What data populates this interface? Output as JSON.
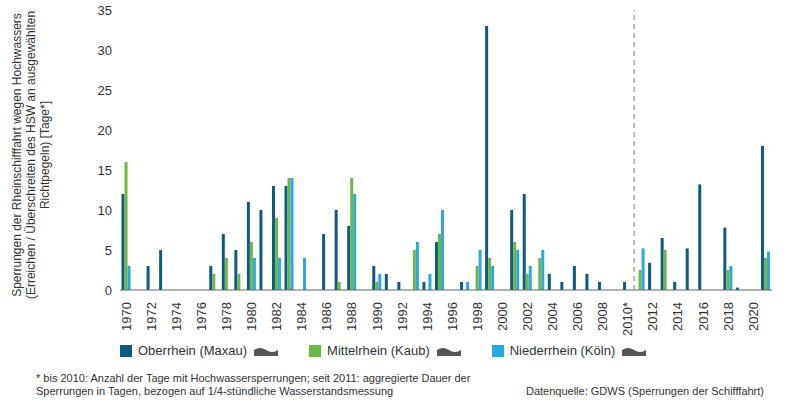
{
  "chart_data": {
    "type": "bar",
    "y_label": "Sperrungen der Rheinschifffahrt wegen Hochwassers (Erreichen / Überschreiten des HSW an ausgewählten Richtpegeln)  [Tage*]",
    "categories": [
      "1970",
      null,
      "1972",
      null,
      "1974",
      null,
      "1976",
      null,
      "1978",
      null,
      "1980",
      null,
      "1982",
      null,
      "1984",
      null,
      "1986",
      null,
      "1988",
      null,
      "1990",
      null,
      "1992",
      null,
      "1994",
      null,
      "1996",
      null,
      "1998",
      null,
      "2000",
      null,
      "2002",
      null,
      "2004",
      null,
      "2006",
      null,
      "2008",
      null,
      "2010*",
      null,
      "2012",
      null,
      "2014",
      null,
      "2016",
      null,
      "2018",
      null,
      "2020",
      null
    ],
    "series": [
      {
        "name": "Oberrhein (Maxau)",
        "color": "#0e5a80",
        "values": [
          12,
          0,
          3,
          5,
          0,
          0,
          0,
          3,
          7,
          5,
          11,
          10,
          13,
          13,
          0,
          0,
          7,
          10,
          8,
          0,
          3,
          2,
          1,
          0,
          1,
          6,
          0,
          1,
          0,
          33,
          0,
          10,
          12,
          0,
          2,
          1,
          3,
          2,
          1,
          0,
          1,
          0,
          3.4,
          6.5,
          1,
          5.2,
          13.2,
          0,
          7.8,
          0.3,
          0,
          18
        ]
      },
      {
        "name": "Mittelrhein (Kaub)",
        "color": "#6fb744",
        "values": [
          16,
          0,
          0,
          0,
          0,
          0,
          0,
          2,
          4,
          2,
          6,
          0,
          9,
          14,
          0,
          0,
          0,
          1,
          14,
          0,
          1,
          0,
          0,
          5,
          0,
          7,
          0,
          0,
          3,
          4,
          0,
          6,
          2,
          4,
          0,
          0,
          0,
          0,
          0,
          0,
          0,
          2.5,
          0,
          5,
          0,
          0,
          0,
          0,
          2.5,
          0,
          0,
          4
        ]
      },
      {
        "name": "Niederrhein (Köln)",
        "color": "#2aa8e0",
        "values": [
          3,
          0,
          0,
          0,
          0,
          0,
          0,
          0,
          0,
          0,
          4,
          0,
          4,
          14,
          4,
          0,
          0,
          0,
          12,
          0,
          2,
          0,
          0,
          6,
          2,
          10,
          0,
          1,
          5,
          3,
          0,
          5,
          3,
          5,
          0,
          0,
          0,
          0,
          0,
          0,
          0,
          5.2,
          0,
          0,
          0,
          0,
          0,
          0,
          3,
          0,
          0,
          4.8
        ]
      }
    ],
    "ylim": [
      0,
      35
    ],
    "yticks": [
      0,
      5,
      10,
      15,
      20,
      25,
      30,
      35
    ],
    "grid": false,
    "legend": "bottom",
    "divider_after": "2010*",
    "footnote": "* bis 2010: Anzahl der Tage mit Hochwassersperrungen; seit 2011: aggregierte Dauer der Sperrungen in Tagen, bezogen auf 1/4-stündliche Wasserstandsmessung",
    "source": "Datenquelle: GDWS (Sperrungen der Schifffahrt)"
  }
}
